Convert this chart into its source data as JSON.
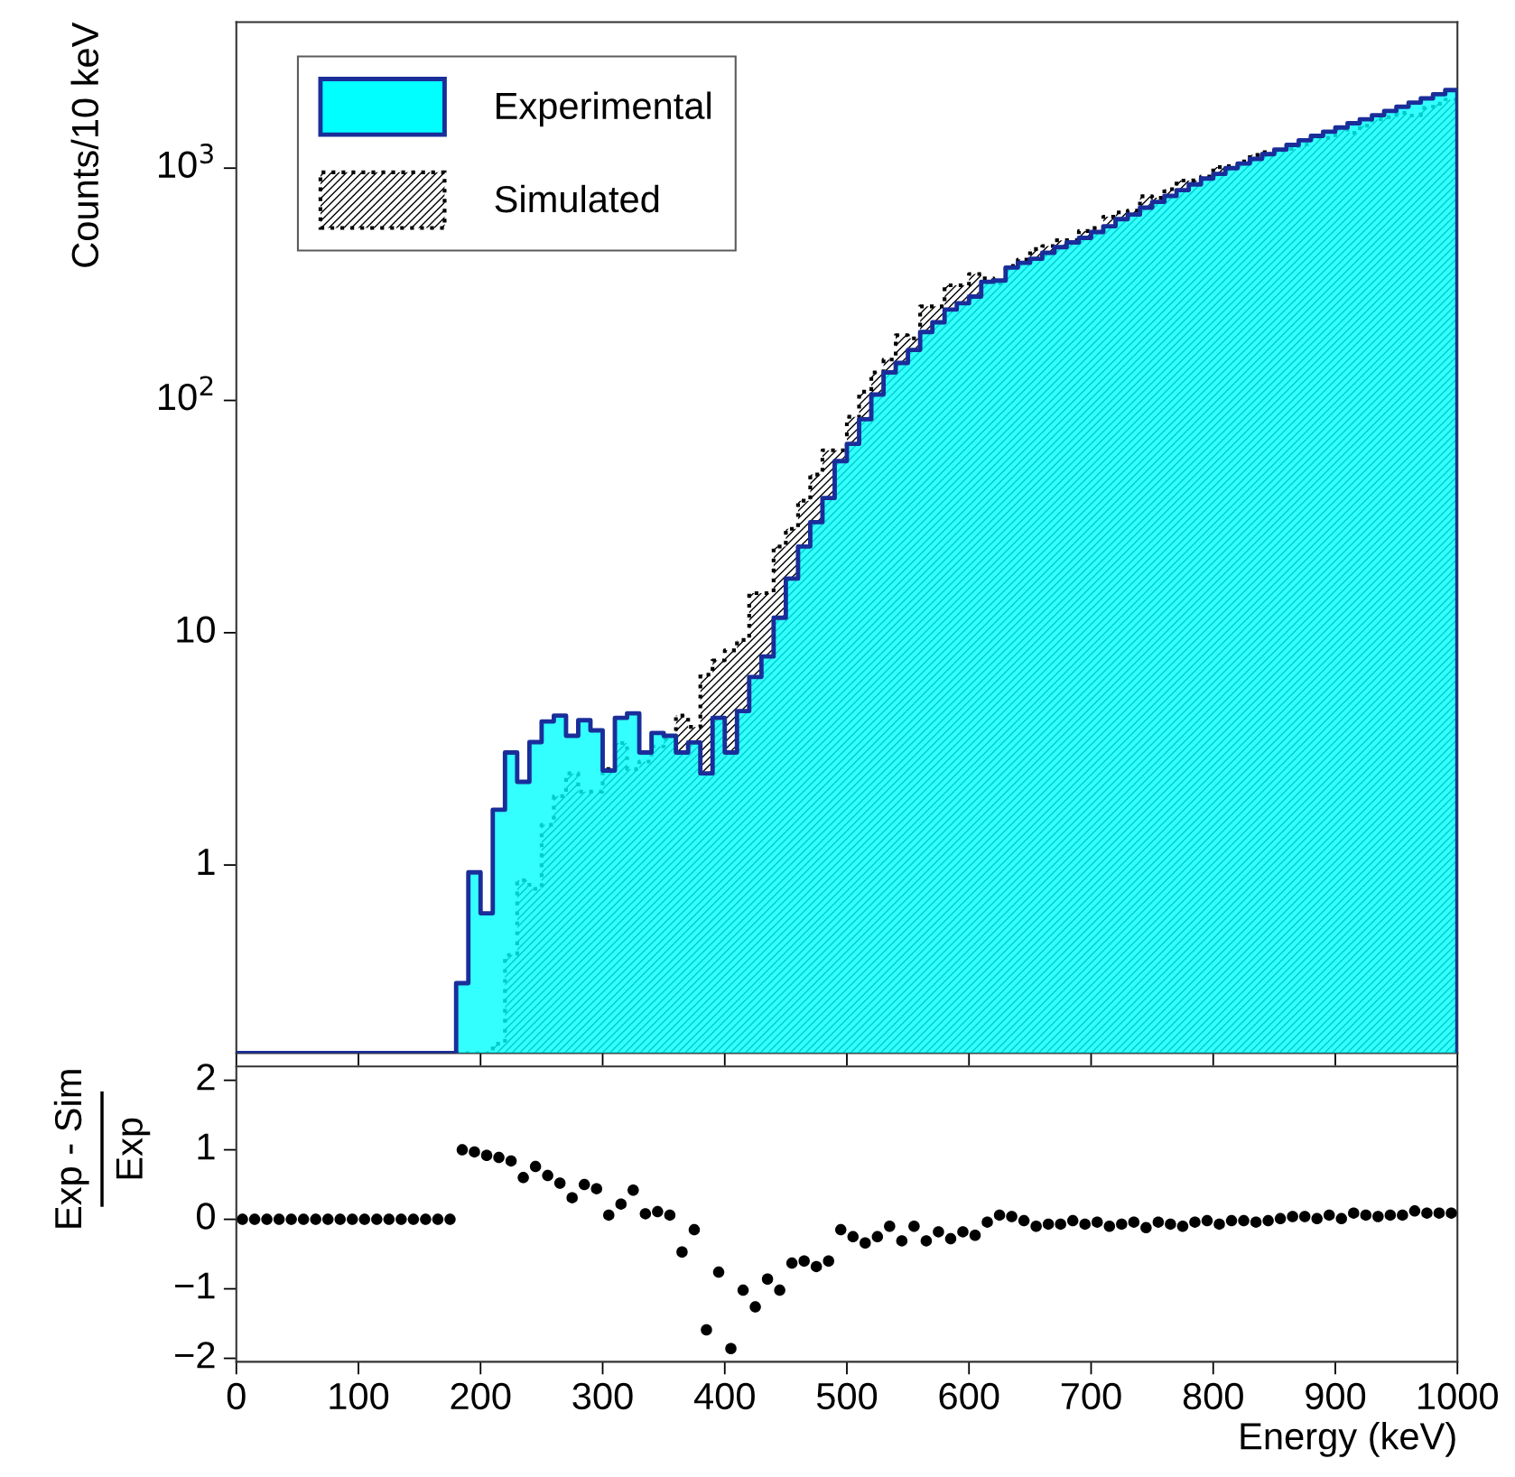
{
  "chart_data": [
    {
      "type": "histogram",
      "ylabel": "Counts/10 keV",
      "log": "y",
      "legend": "top left",
      "tick_labels": "y",
      "bins": [
        0,
        10,
        20,
        30,
        40,
        50,
        60,
        70,
        80,
        90,
        100,
        110,
        120,
        130,
        140,
        150,
        160,
        170,
        180,
        190,
        200,
        210,
        220,
        230,
        240,
        250,
        260,
        270,
        280,
        290,
        300,
        310,
        320,
        330,
        340,
        350,
        360,
        370,
        380,
        390,
        400,
        410,
        420,
        430,
        440,
        450,
        460,
        470,
        480,
        490,
        500,
        510,
        520,
        530,
        540,
        550,
        560,
        570,
        580,
        590,
        600,
        610,
        620,
        630,
        640,
        650,
        660,
        670,
        680,
        690,
        700,
        710,
        720,
        730,
        740,
        750,
        760,
        770,
        780,
        790,
        800,
        810,
        820,
        830,
        840,
        850,
        860,
        870,
        880,
        890,
        900,
        910,
        920,
        930,
        940,
        950,
        960,
        970,
        980,
        990,
        1000
      ],
      "xlim": [
        0,
        1000
      ],
      "xticks": [
        0,
        100,
        200,
        300,
        400,
        500,
        600,
        700,
        800,
        900,
        1000
      ],
      "ylim": [
        0.155,
        4250
      ],
      "yticks": [
        {
          "value": 1,
          "label": "1"
        },
        {
          "value": 10,
          "label": "10"
        },
        {
          "value": 100,
          "label": "10$^{2}$"
        },
        {
          "value": 1000,
          "label": "10$^{3}$"
        }
      ],
      "series": [
        {
          "name": "Experimental",
          "color": "#00ffff",
          "line_style": "solid",
          "values": [
            null,
            null,
            null,
            null,
            null,
            null,
            null,
            null,
            null,
            null,
            null,
            null,
            null,
            null,
            null,
            null,
            null,
            null,
            0.31,
            0.93,
            0.62,
            1.73,
            3.05,
            2.28,
            3.38,
            4.15,
            4.4,
            3.6,
            4.2,
            3.8,
            2.55,
            4.3,
            4.5,
            3.05,
            3.7,
            3.6,
            3.05,
            3.37,
            2.48,
            4.3,
            3.05,
            4.6,
            6.45,
            7.9,
            11.6,
            17.1,
            23.5,
            29.9,
            38,
            54.8,
            65,
            83,
            106,
            132,
            145,
            165,
            197,
            217,
            246,
            262,
            280,
            324,
            328,
            373,
            391,
            407,
            432,
            457,
            479,
            501,
            531,
            562,
            603,
            631,
            676,
            716,
            759,
            804,
            851,
            902,
            944,
            1000,
            1047,
            1096,
            1148,
            1202,
            1259,
            1318,
            1377,
            1435,
            1496,
            1560,
            1622,
            1690,
            1762,
            1837,
            1914,
            1995,
            2080,
            2168
          ]
        },
        {
          "name": "Simulated",
          "color": "#000000",
          "line_style": "dotted",
          "values": [
            null,
            null,
            null,
            null,
            null,
            null,
            null,
            null,
            null,
            null,
            null,
            null,
            null,
            null,
            null,
            null,
            null,
            null,
            null,
            null,
            null,
            0.17,
            0.41,
            0.86,
            0.79,
            1.49,
            1.98,
            2.48,
            2.07,
            2.07,
            2.59,
            3.35,
            2.59,
            2.79,
            3.24,
            3.5,
            4.4,
            3.93,
            6.6,
            7.6,
            8.4,
            9.3,
            14.8,
            14.8,
            23.5,
            28,
            37,
            48,
            61,
            61,
            85,
            109,
            132,
            150,
            191,
            185,
            254,
            254,
            313,
            313,
            350,
            335,
            320,
            379,
            404,
            448,
            462,
            489,
            489,
            536,
            552,
            618,
            645,
            656,
            757,
            745,
            812,
            884,
            885,
            920,
            1010,
            1020,
            1068,
            1140,
            1171,
            1190,
            1209,
            1265,
            1363,
            1349,
            1481,
            1420,
            1525,
            1622,
            1656,
            1727,
            1684,
            1815,
            1893,
            1973
          ]
        }
      ]
    },
    {
      "type": "scatter",
      "xlabel": "Energy (keV)",
      "ylabel": "Exp - Sim\nExp",
      "marker": "circle",
      "color": "#000000",
      "xlim": [
        0,
        1000
      ],
      "xticks": [
        0,
        100,
        200,
        300,
        400,
        500,
        600,
        700,
        800,
        900,
        1000
      ],
      "ylim": [
        -2.05,
        2.2
      ],
      "yticks": [
        {
          "value": -2,
          "label": "−2"
        },
        {
          "value": -1,
          "label": "−1"
        },
        0,
        1,
        2
      ],
      "x": [
        5,
        15,
        25,
        35,
        45,
        55,
        65,
        75,
        85,
        95,
        105,
        115,
        125,
        135,
        145,
        155,
        165,
        175,
        185,
        195,
        205,
        215,
        225,
        235,
        245,
        255,
        265,
        275,
        285,
        295,
        305,
        315,
        325,
        335,
        345,
        355,
        365,
        375,
        385,
        395,
        405,
        415,
        425,
        435,
        445,
        455,
        465,
        475,
        485,
        495,
        505,
        515,
        525,
        535,
        545,
        555,
        565,
        575,
        585,
        595,
        605,
        615,
        625,
        635,
        645,
        655,
        665,
        675,
        685,
        695,
        705,
        715,
        725,
        735,
        745,
        755,
        765,
        775,
        785,
        795,
        805,
        815,
        825,
        835,
        845,
        855,
        865,
        875,
        885,
        895,
        905,
        915,
        925,
        935,
        945,
        955,
        965,
        975,
        985,
        995
      ],
      "values": [
        0,
        0,
        0,
        0,
        0,
        0,
        0,
        0,
        0,
        0,
        0,
        0,
        0,
        0,
        0,
        0,
        0,
        0,
        1.0,
        0.97,
        0.92,
        0.89,
        0.84,
        0.6,
        0.76,
        0.63,
        0.52,
        0.31,
        0.5,
        0.44,
        0.06,
        0.22,
        0.42,
        0.08,
        0.11,
        0.06,
        -0.47,
        -0.15,
        -1.59,
        -0.76,
        -1.86,
        -1.02,
        -1.26,
        -0.86,
        -1.02,
        -0.63,
        -0.6,
        -0.68,
        -0.6,
        -0.15,
        -0.25,
        -0.34,
        -0.25,
        -0.1,
        -0.31,
        -0.1,
        -0.31,
        -0.18,
        -0.28,
        -0.18,
        -0.23,
        -0.04,
        0.06,
        0.04,
        -0.02,
        -0.1,
        -0.07,
        -0.07,
        -0.02,
        -0.07,
        -0.04,
        -0.1,
        -0.07,
        -0.04,
        -0.12,
        -0.04,
        -0.07,
        -0.1,
        -0.04,
        -0.02,
        -0.07,
        -0.02,
        -0.02,
        -0.04,
        -0.02,
        0.01,
        0.04,
        0.04,
        0.01,
        0.06,
        0.01,
        0.09,
        0.06,
        0.04,
        0.06,
        0.06,
        0.12,
        0.09,
        0.09,
        0.09
      ]
    }
  ]
}
